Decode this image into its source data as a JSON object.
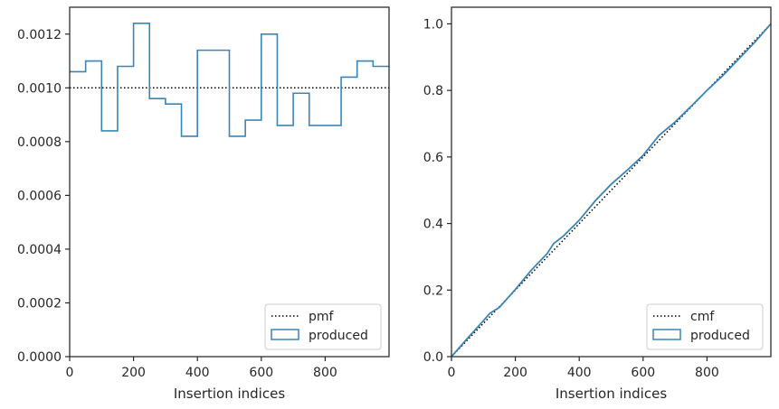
{
  "colors": {
    "produced": "#3a85b4",
    "reference": "#000000",
    "frame": "#262626",
    "legend_border": "#cccccc"
  },
  "chart_data": [
    {
      "type": "line",
      "xlabel": "Insertion indices",
      "ylabel": "",
      "xlim": [
        0,
        1000
      ],
      "ylim": [
        0,
        0.0013
      ],
      "xticks": [
        0,
        200,
        400,
        600,
        800
      ],
      "xtick_labels": [
        "0",
        "200",
        "400",
        "600",
        "800"
      ],
      "yticks": [
        0,
        0.0002,
        0.0004,
        0.0006,
        0.0008,
        0.001,
        0.0012
      ],
      "ytick_labels": [
        "0.0000",
        "0.0002",
        "0.0004",
        "0.0006",
        "0.0008",
        "0.0010",
        "0.0012"
      ],
      "grid": false,
      "legend_position": "lower-right",
      "legend": [
        "pmf",
        "produced"
      ],
      "series": [
        {
          "name": "pmf",
          "style": "dotted",
          "x": [
            0,
            1000
          ],
          "y": [
            0.001,
            0.001
          ]
        },
        {
          "name": "produced",
          "style": "step-histogram",
          "bin_edges": [
            0,
            50,
            100,
            150,
            200,
            250,
            300,
            350,
            400,
            450,
            500,
            550,
            600,
            650,
            700,
            750,
            800,
            850,
            900,
            950,
            1000
          ],
          "values": [
            0.00106,
            0.0011,
            0.00084,
            0.00108,
            0.00124,
            0.00096,
            0.00094,
            0.00082,
            0.00114,
            0.00114,
            0.00082,
            0.00088,
            0.0012,
            0.00086,
            0.00098,
            0.00086,
            0.00086,
            0.00104,
            0.0011,
            0.00108
          ]
        }
      ]
    },
    {
      "type": "line",
      "xlabel": "Insertion indices",
      "ylabel": "",
      "xlim": [
        0,
        1000
      ],
      "ylim": [
        0,
        1.05
      ],
      "xticks": [
        0,
        200,
        400,
        600,
        800
      ],
      "xtick_labels": [
        "0",
        "200",
        "400",
        "600",
        "800"
      ],
      "yticks": [
        0,
        0.2,
        0.4,
        0.6,
        0.8,
        1.0
      ],
      "ytick_labels": [
        "0.0",
        "0.2",
        "0.4",
        "0.6",
        "0.8",
        "1.0"
      ],
      "grid": false,
      "legend_position": "lower-right",
      "legend": [
        "cmf",
        "produced"
      ],
      "series": [
        {
          "name": "cmf",
          "style": "dotted",
          "x": [
            0,
            1000
          ],
          "y": [
            0,
            1.0
          ]
        },
        {
          "name": "produced",
          "style": "solid",
          "x": [
            0,
            50,
            100,
            120,
            150,
            200,
            250,
            300,
            320,
            350,
            400,
            450,
            500,
            550,
            600,
            650,
            700,
            750,
            800,
            850,
            900,
            950,
            1000
          ],
          "y": [
            0,
            0.055,
            0.108,
            0.13,
            0.148,
            0.202,
            0.26,
            0.31,
            0.34,
            0.362,
            0.41,
            0.468,
            0.518,
            0.56,
            0.605,
            0.665,
            0.705,
            0.752,
            0.8,
            0.845,
            0.895,
            0.945,
            1.0
          ]
        }
      ]
    }
  ]
}
